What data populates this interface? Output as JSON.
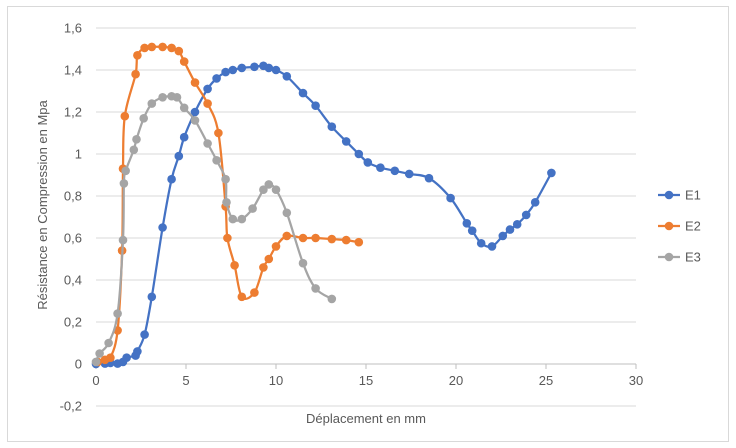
{
  "chart_data": {
    "type": "scatter",
    "title": "",
    "xlabel": "Déplacement en mm",
    "ylabel": "Résistance en Compression en Mpa",
    "xlim": [
      0,
      30
    ],
    "ylim": [
      -0.2,
      1.6
    ],
    "xticks": [
      "0",
      "5",
      "10",
      "15",
      "20",
      "25",
      "30"
    ],
    "yticks": [
      "-0,2",
      "0",
      "0,2",
      "0,4",
      "0,6",
      "0,8",
      "1",
      "1,2",
      "1,4",
      "1,6"
    ],
    "grid": "horizontal",
    "legend_position": "right",
    "series": [
      {
        "name": "E1",
        "color": "#4472c4",
        "x": [
          0,
          0.5,
          0.8,
          1.2,
          1.5,
          1.7,
          2.2,
          2.3,
          2.7,
          3.1,
          3.7,
          4.2,
          4.6,
          4.9,
          5.5,
          6.2,
          6.7,
          7.2,
          7.6,
          8.1,
          8.8,
          9.3,
          9.6,
          10.0,
          10.6,
          11.5,
          12.2,
          13.1,
          13.9,
          14.6,
          15.1,
          15.8,
          16.6,
          17.4,
          18.5,
          19.7,
          20.6,
          20.9,
          21.4,
          22.0,
          22.6,
          23.0,
          23.4,
          23.9,
          24.4,
          25.3
        ],
        "y": [
          0,
          0.002,
          0.005,
          0.002,
          0.01,
          0.03,
          0.04,
          0.06,
          0.14,
          0.32,
          0.65,
          0.88,
          0.99,
          1.08,
          1.2,
          1.31,
          1.36,
          1.39,
          1.4,
          1.41,
          1.415,
          1.42,
          1.41,
          1.4,
          1.37,
          1.29,
          1.23,
          1.13,
          1.06,
          1.0,
          0.96,
          0.935,
          0.92,
          0.905,
          0.885,
          0.79,
          0.67,
          0.635,
          0.575,
          0.56,
          0.61,
          0.64,
          0.665,
          0.71,
          0.77,
          0.91
        ]
      },
      {
        "name": "E2",
        "color": "#ed7d31",
        "x": [
          0.1,
          0.5,
          0.8,
          1.2,
          1.45,
          1.5,
          1.6,
          2.2,
          2.3,
          2.7,
          3.1,
          3.7,
          4.2,
          4.6,
          4.9,
          5.5,
          6.2,
          6.8,
          7.2,
          7.3,
          7.7,
          8.1,
          8.8,
          9.3,
          9.6,
          10.0,
          10.6,
          11.5,
          12.2,
          13.1,
          13.9,
          14.6
        ],
        "y": [
          0.01,
          0.02,
          0.03,
          0.16,
          0.54,
          0.93,
          1.18,
          1.38,
          1.47,
          1.505,
          1.51,
          1.51,
          1.505,
          1.49,
          1.44,
          1.34,
          1.24,
          1.1,
          0.75,
          0.6,
          0.47,
          0.32,
          0.34,
          0.46,
          0.5,
          0.56,
          0.61,
          0.6,
          0.6,
          0.595,
          0.59,
          0.58
        ]
      },
      {
        "name": "E3",
        "color": "#a5a5a5",
        "x": [
          0,
          0.2,
          0.7,
          1.2,
          1.5,
          1.55,
          1.65,
          2.1,
          2.25,
          2.65,
          3.1,
          3.7,
          4.2,
          4.5,
          4.9,
          5.5,
          6.2,
          6.7,
          7.2,
          7.25,
          7.6,
          8.1,
          8.7,
          9.3,
          9.6,
          10.0,
          10.6,
          11.5,
          12.2,
          13.1
        ],
        "y": [
          0.01,
          0.05,
          0.1,
          0.24,
          0.59,
          0.86,
          0.92,
          1.02,
          1.07,
          1.17,
          1.24,
          1.27,
          1.275,
          1.27,
          1.22,
          1.16,
          1.05,
          0.97,
          0.88,
          0.77,
          0.69,
          0.69,
          0.74,
          0.83,
          0.855,
          0.83,
          0.72,
          0.48,
          0.36,
          0.31
        ]
      }
    ]
  }
}
